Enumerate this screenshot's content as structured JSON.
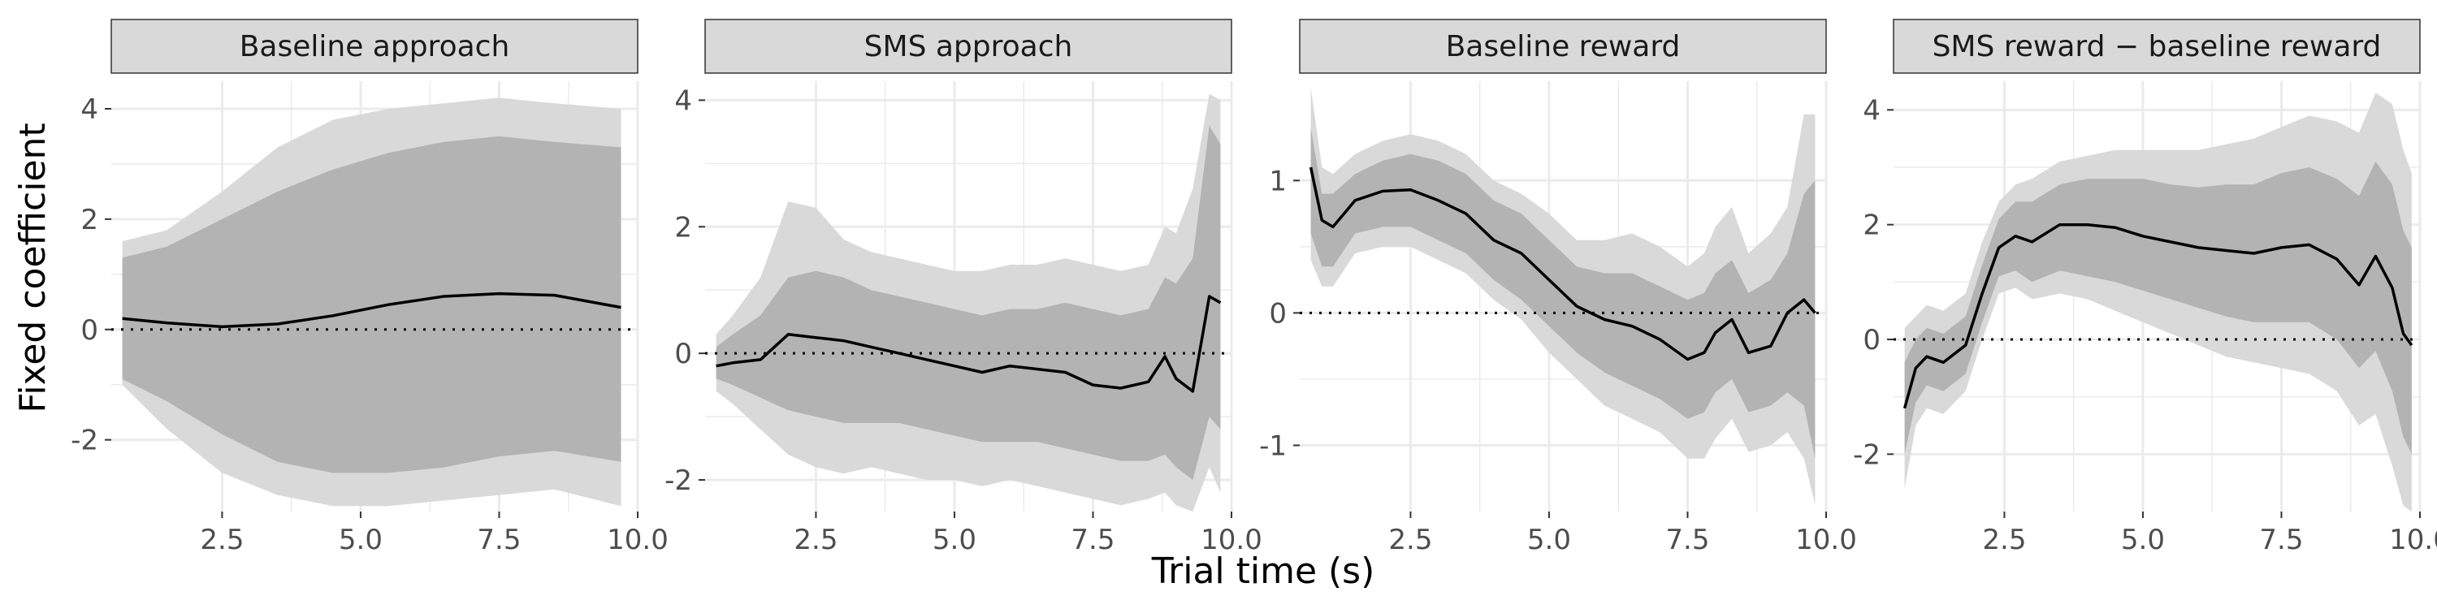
{
  "figure": {
    "xlabel": "Trial time (s)",
    "ylabel": "Fixed coefficient"
  },
  "colors": {
    "outer_band": "#d9d9d9",
    "inner_band": "#b3b3b3",
    "line": "#000000",
    "strip_fill": "#d9d9d9",
    "strip_border": "#333333",
    "grid": "#ebebeb",
    "zero_line": "#000000"
  },
  "chart_data": [
    {
      "type": "line",
      "title": "Baseline approach",
      "xlim": [
        0.5,
        10.0
      ],
      "ylim": [
        -3.3,
        4.5
      ],
      "xticks": [
        2.5,
        5.0,
        7.5,
        10.0
      ],
      "xtick_labels": [
        "2.5",
        "5.0",
        "7.5",
        "10.0"
      ],
      "yticks": [
        -2,
        0,
        2,
        4
      ],
      "ytick_labels": [
        "-2",
        "0",
        "2",
        "4"
      ],
      "reference_line": 0,
      "x": [
        0.7,
        1.5,
        2.5,
        3.5,
        4.5,
        5.5,
        6.5,
        7.5,
        8.5,
        9.7
      ],
      "mean": [
        0.2,
        0.12,
        0.05,
        0.1,
        0.25,
        0.45,
        0.6,
        0.65,
        0.62,
        0.4
      ],
      "inner_lower": [
        -0.9,
        -1.3,
        -1.9,
        -2.4,
        -2.6,
        -2.6,
        -2.5,
        -2.3,
        -2.2,
        -2.4
      ],
      "inner_upper": [
        1.3,
        1.5,
        2.0,
        2.5,
        2.9,
        3.2,
        3.4,
        3.5,
        3.4,
        3.3
      ],
      "outer_lower": [
        -1.0,
        -1.8,
        -2.6,
        -3.0,
        -3.2,
        -3.2,
        -3.1,
        -3.0,
        -2.9,
        -3.2
      ],
      "outer_upper": [
        1.6,
        1.8,
        2.5,
        3.3,
        3.8,
        4.0,
        4.1,
        4.2,
        4.1,
        4.0
      ]
    },
    {
      "type": "line",
      "title": "SMS approach",
      "xlim": [
        0.5,
        10.0
      ],
      "ylim": [
        -2.5,
        4.3
      ],
      "xticks": [
        2.5,
        5.0,
        7.5,
        10.0
      ],
      "xtick_labels": [
        "2.5",
        "5.0",
        "7.5",
        "10.0"
      ],
      "yticks": [
        -2,
        0,
        2,
        4
      ],
      "ytick_labels": [
        "-2",
        "0",
        "2",
        "4"
      ],
      "reference_line": 0,
      "x": [
        0.7,
        1.0,
        1.5,
        2.0,
        2.5,
        3.0,
        3.5,
        4.0,
        4.5,
        5.0,
        5.5,
        6.0,
        6.5,
        7.0,
        7.5,
        8.0,
        8.5,
        8.8,
        9.0,
        9.3,
        9.6,
        9.8
      ],
      "mean": [
        -0.2,
        -0.15,
        -0.1,
        0.3,
        0.25,
        0.2,
        0.1,
        0.0,
        -0.1,
        -0.2,
        -0.3,
        -0.2,
        -0.25,
        -0.3,
        -0.5,
        -0.55,
        -0.45,
        -0.05,
        -0.4,
        -0.6,
        0.9,
        0.8
      ],
      "inner_lower": [
        -0.4,
        -0.5,
        -0.7,
        -0.9,
        -1.0,
        -1.1,
        -1.1,
        -1.1,
        -1.2,
        -1.3,
        -1.4,
        -1.4,
        -1.4,
        -1.5,
        -1.6,
        -1.7,
        -1.7,
        -1.6,
        -1.8,
        -2.0,
        -1.0,
        -1.2
      ],
      "inner_upper": [
        0.1,
        0.3,
        0.6,
        1.2,
        1.3,
        1.2,
        1.0,
        0.9,
        0.8,
        0.7,
        0.6,
        0.7,
        0.7,
        0.8,
        0.7,
        0.6,
        0.7,
        1.2,
        1.1,
        1.5,
        3.6,
        3.3
      ],
      "outer_lower": [
        -0.6,
        -0.8,
        -1.2,
        -1.6,
        -1.8,
        -1.9,
        -1.8,
        -1.9,
        -2.0,
        -2.0,
        -2.1,
        -2.0,
        -2.1,
        -2.2,
        -2.3,
        -2.4,
        -2.3,
        -2.2,
        -2.4,
        -2.5,
        -1.8,
        -2.2
      ],
      "outer_upper": [
        0.3,
        0.6,
        1.2,
        2.4,
        2.3,
        1.8,
        1.6,
        1.5,
        1.4,
        1.3,
        1.3,
        1.4,
        1.4,
        1.5,
        1.4,
        1.3,
        1.4,
        2.0,
        1.9,
        2.6,
        4.1,
        4.0
      ]
    },
    {
      "type": "line",
      "title": "Baseline reward",
      "xlim": [
        0.5,
        10.0
      ],
      "ylim": [
        -1.5,
        1.75
      ],
      "xticks": [
        2.5,
        5.0,
        7.5,
        10.0
      ],
      "xtick_labels": [
        "2.5",
        "5.0",
        "7.5",
        "10.0"
      ],
      "yticks": [
        -1,
        0,
        1
      ],
      "ytick_labels": [
        "-1",
        "0",
        "1"
      ],
      "reference_line": 0,
      "x": [
        0.7,
        0.9,
        1.1,
        1.5,
        2.0,
        2.5,
        3.0,
        3.5,
        4.0,
        4.5,
        5.0,
        5.5,
        6.0,
        6.5,
        7.0,
        7.5,
        7.8,
        8.0,
        8.3,
        8.6,
        9.0,
        9.3,
        9.6,
        9.8
      ],
      "mean": [
        1.1,
        0.7,
        0.65,
        0.85,
        0.92,
        0.93,
        0.85,
        0.75,
        0.55,
        0.45,
        0.25,
        0.05,
        -0.05,
        -0.1,
        -0.2,
        -0.35,
        -0.3,
        -0.15,
        -0.05,
        -0.3,
        -0.25,
        0.0,
        0.1,
        0.0
      ],
      "inner_lower": [
        0.6,
        0.35,
        0.35,
        0.6,
        0.65,
        0.65,
        0.55,
        0.45,
        0.25,
        0.1,
        -0.1,
        -0.3,
        -0.45,
        -0.55,
        -0.65,
        -0.8,
        -0.75,
        -0.6,
        -0.5,
        -0.75,
        -0.7,
        -0.6,
        -0.7,
        -1.1
      ],
      "inner_upper": [
        1.4,
        0.9,
        0.9,
        1.05,
        1.15,
        1.2,
        1.15,
        1.05,
        0.85,
        0.75,
        0.55,
        0.35,
        0.3,
        0.3,
        0.2,
        0.1,
        0.15,
        0.3,
        0.4,
        0.15,
        0.25,
        0.45,
        0.9,
        1.0
      ],
      "outer_lower": [
        0.4,
        0.2,
        0.2,
        0.45,
        0.5,
        0.5,
        0.4,
        0.3,
        0.1,
        -0.05,
        -0.3,
        -0.5,
        -0.7,
        -0.8,
        -0.9,
        -1.1,
        -1.1,
        -0.95,
        -0.8,
        -1.05,
        -1.0,
        -0.9,
        -1.1,
        -1.45
      ],
      "outer_upper": [
        1.7,
        1.1,
        1.05,
        1.2,
        1.3,
        1.35,
        1.3,
        1.2,
        1.0,
        0.9,
        0.75,
        0.55,
        0.55,
        0.6,
        0.5,
        0.35,
        0.45,
        0.65,
        0.8,
        0.45,
        0.6,
        0.8,
        1.5,
        1.5
      ]
    },
    {
      "type": "line",
      "title": "SMS reward − baseline reward",
      "xlim": [
        0.5,
        10.0
      ],
      "ylim": [
        -3.0,
        4.5
      ],
      "xticks": [
        2.5,
        5.0,
        7.5,
        10.0
      ],
      "xtick_labels": [
        "2.5",
        "5.0",
        "7.5",
        "10.0"
      ],
      "yticks": [
        -2,
        0,
        2,
        4
      ],
      "ytick_labels": [
        "-2",
        "0",
        "2",
        "4"
      ],
      "reference_line": 0,
      "x": [
        0.7,
        0.9,
        1.1,
        1.4,
        1.8,
        2.1,
        2.4,
        2.7,
        3.0,
        3.5,
        4.0,
        4.5,
        5.0,
        5.5,
        6.0,
        6.5,
        7.0,
        7.5,
        8.0,
        8.5,
        8.9,
        9.2,
        9.5,
        9.7,
        9.85
      ],
      "mean": [
        -1.2,
        -0.5,
        -0.3,
        -0.4,
        -0.1,
        0.8,
        1.6,
        1.8,
        1.7,
        2.0,
        2.0,
        1.95,
        1.8,
        1.7,
        1.6,
        1.55,
        1.5,
        1.6,
        1.65,
        1.4,
        0.95,
        1.45,
        0.9,
        0.1,
        -0.1
      ],
      "inner_lower": [
        -2.0,
        -1.1,
        -0.8,
        -0.9,
        -0.6,
        0.3,
        1.1,
        1.2,
        1.0,
        1.2,
        1.1,
        1.0,
        0.85,
        0.7,
        0.55,
        0.4,
        0.3,
        0.3,
        0.3,
        0.0,
        -0.5,
        -0.2,
        -0.9,
        -1.7,
        -2.0
      ],
      "inner_upper": [
        -0.4,
        0.0,
        0.2,
        0.1,
        0.4,
        1.3,
        2.1,
        2.4,
        2.4,
        2.7,
        2.8,
        2.8,
        2.8,
        2.7,
        2.65,
        2.7,
        2.7,
        2.9,
        3.0,
        2.8,
        2.5,
        3.1,
        2.7,
        1.9,
        1.6
      ],
      "outer_lower": [
        -2.6,
        -1.5,
        -1.2,
        -1.3,
        -0.9,
        0.0,
        0.8,
        0.9,
        0.7,
        0.8,
        0.7,
        0.5,
        0.3,
        0.1,
        -0.1,
        -0.3,
        -0.4,
        -0.5,
        -0.6,
        -0.9,
        -1.5,
        -1.3,
        -2.2,
        -2.9,
        -3.0
      ],
      "outer_upper": [
        0.2,
        0.4,
        0.6,
        0.5,
        0.8,
        1.7,
        2.4,
        2.7,
        2.8,
        3.1,
        3.2,
        3.3,
        3.3,
        3.3,
        3.3,
        3.4,
        3.5,
        3.7,
        3.9,
        3.8,
        3.6,
        4.3,
        4.1,
        3.3,
        2.9
      ]
    }
  ]
}
